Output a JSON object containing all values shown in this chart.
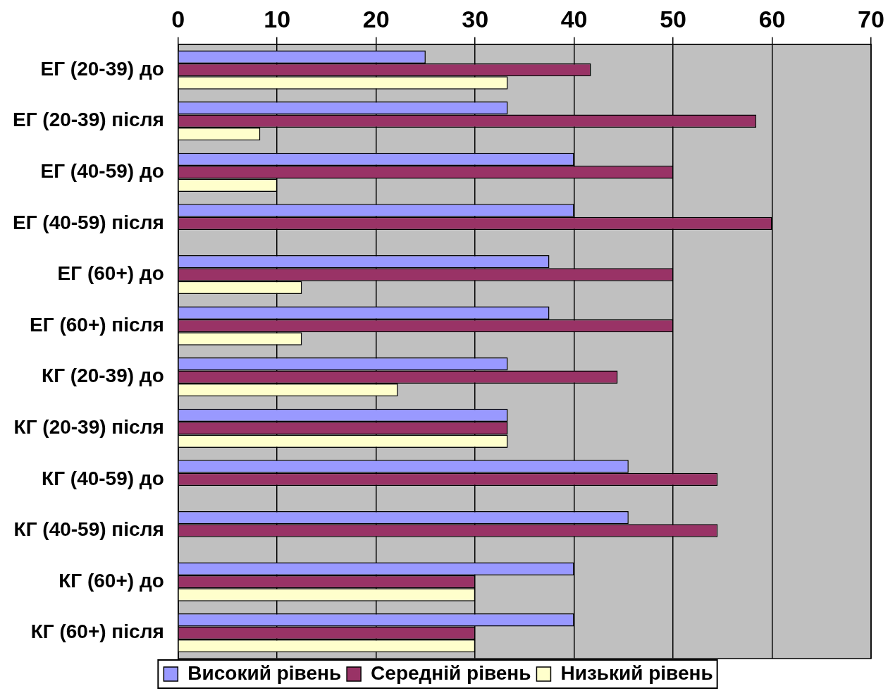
{
  "chart_data": {
    "type": "bar",
    "orientation": "horizontal",
    "categories": [
      "ЕГ (20-39) до",
      "ЕГ (20-39) після",
      "ЕГ (40-59) до",
      "ЕГ (40-59) після",
      "ЕГ (60+) до",
      "ЕГ (60+) після",
      "КГ (20-39) до",
      "КГ (20-39) після",
      "КГ (40-59) до",
      "КГ (40-59) після",
      "КГ (60+) до",
      "КГ (60+) після"
    ],
    "series": [
      {
        "name": "Високий рівень",
        "color": "#9999ff",
        "values": [
          25,
          33.3,
          40,
          40,
          37.5,
          37.5,
          33.3,
          33.3,
          45.5,
          45.5,
          40,
          40
        ]
      },
      {
        "name": "Середній рівень",
        "color": "#993366",
        "values": [
          41.7,
          58.4,
          50,
          60,
          50,
          50,
          44.4,
          33.3,
          54.5,
          54.5,
          30,
          30
        ]
      },
      {
        "name": "Низький рівень",
        "color": "#ffffcc",
        "values": [
          33.3,
          8.3,
          10,
          0,
          12.5,
          12.5,
          22.2,
          33.3,
          0,
          0,
          30,
          30
        ]
      }
    ],
    "xlim": [
      0,
      70
    ],
    "xticks": [
      0,
      10,
      20,
      30,
      40,
      50,
      60,
      70
    ],
    "grid": "x",
    "legend": "bottom"
  }
}
